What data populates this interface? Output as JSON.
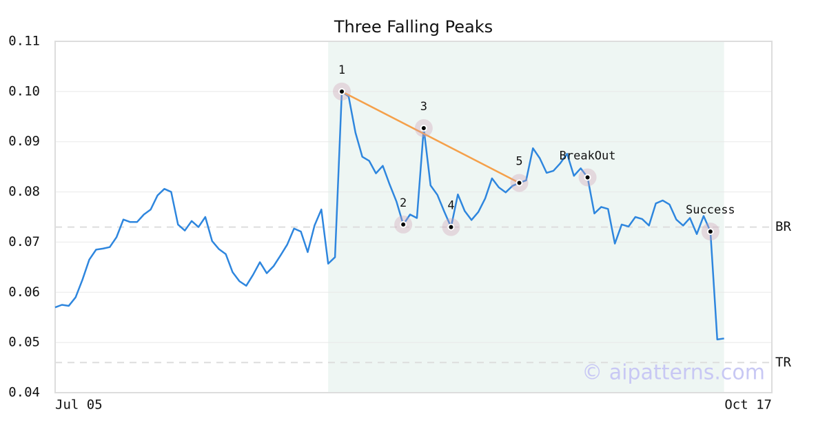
{
  "chart_data": {
    "type": "line",
    "title": "Three Falling Peaks",
    "x": [
      0,
      1,
      2,
      3,
      4,
      5,
      6,
      7,
      8,
      9,
      10,
      11,
      12,
      13,
      14,
      15,
      16,
      17,
      18,
      19,
      20,
      21,
      22,
      23,
      24,
      25,
      26,
      27,
      28,
      29,
      30,
      31,
      32,
      33,
      34,
      35,
      36,
      37,
      38,
      39,
      40,
      41,
      42,
      43,
      44,
      45,
      46,
      47,
      48,
      49,
      50,
      51,
      52,
      53,
      54,
      55,
      56,
      57,
      58,
      59,
      60,
      61,
      62,
      63,
      64,
      65,
      66,
      67,
      68,
      69,
      70,
      71,
      72,
      73,
      74,
      75,
      76,
      77,
      78,
      79,
      80,
      81,
      82,
      83,
      84,
      85,
      86,
      87,
      88,
      89,
      90,
      91,
      92,
      93,
      94,
      95,
      96,
      97,
      98
    ],
    "values": [
      0.057,
      0.0575,
      0.0573,
      0.059,
      0.0625,
      0.0665,
      0.0685,
      0.0687,
      0.069,
      0.071,
      0.0745,
      0.074,
      0.074,
      0.0755,
      0.0765,
      0.0793,
      0.0806,
      0.08,
      0.0735,
      0.0723,
      0.0742,
      0.073,
      0.075,
      0.0702,
      0.0686,
      0.0676,
      0.064,
      0.0622,
      0.0613,
      0.0635,
      0.066,
      0.0638,
      0.0652,
      0.0673,
      0.0695,
      0.0727,
      0.0721,
      0.068,
      0.0733,
      0.0765,
      0.0657,
      0.067,
      0.1,
      0.099,
      0.0918,
      0.087,
      0.0862,
      0.0837,
      0.0852,
      0.0815,
      0.0781,
      0.0735,
      0.0755,
      0.0748,
      0.0927,
      0.0813,
      0.0794,
      0.0761,
      0.073,
      0.0795,
      0.0762,
      0.0744,
      0.076,
      0.0787,
      0.0827,
      0.0809,
      0.0799,
      0.0812,
      0.0818,
      0.0823,
      0.0887,
      0.0867,
      0.0838,
      0.0842,
      0.0857,
      0.0876,
      0.0832,
      0.0847,
      0.0829,
      0.0757,
      0.077,
      0.0766,
      0.0697,
      0.0735,
      0.0731,
      0.075,
      0.0746,
      0.0733,
      0.0777,
      0.0783,
      0.0775,
      0.0745,
      0.0733,
      0.0748,
      0.0716,
      0.0752,
      0.0721,
      0.0506,
      0.0508
    ],
    "color": "#2e86de",
    "xlim": [
      0,
      105
    ],
    "xticks": [
      {
        "value": 0,
        "label": "Jul 05"
      },
      {
        "value": 105,
        "label": "Oct 17"
      }
    ],
    "ylim": [
      0.04,
      0.11
    ],
    "yticks": [
      0.04,
      0.05,
      0.06,
      0.07,
      0.08,
      {
        "value": 0.1,
        "label": "0.10"
      },
      0.09,
      0.11
    ],
    "grid": true,
    "highlight_range": [
      40,
      98
    ],
    "annotations": [
      {
        "label": "1",
        "x": 42
      },
      {
        "label": "2",
        "x": 51
      },
      {
        "label": "3",
        "x": 54
      },
      {
        "label": "4",
        "x": 58
      },
      {
        "label": "5",
        "x": 68
      },
      {
        "label": "BreakOut",
        "x": 78
      },
      {
        "label": "Success",
        "x": 96
      }
    ],
    "trendline": {
      "from": 42,
      "to": 68,
      "color": "#f5a04a"
    },
    "levels": [
      {
        "label": "BR",
        "value": 0.073
      },
      {
        "label": "TR",
        "value": 0.046
      }
    ],
    "watermark": "© aipatterns.com"
  }
}
